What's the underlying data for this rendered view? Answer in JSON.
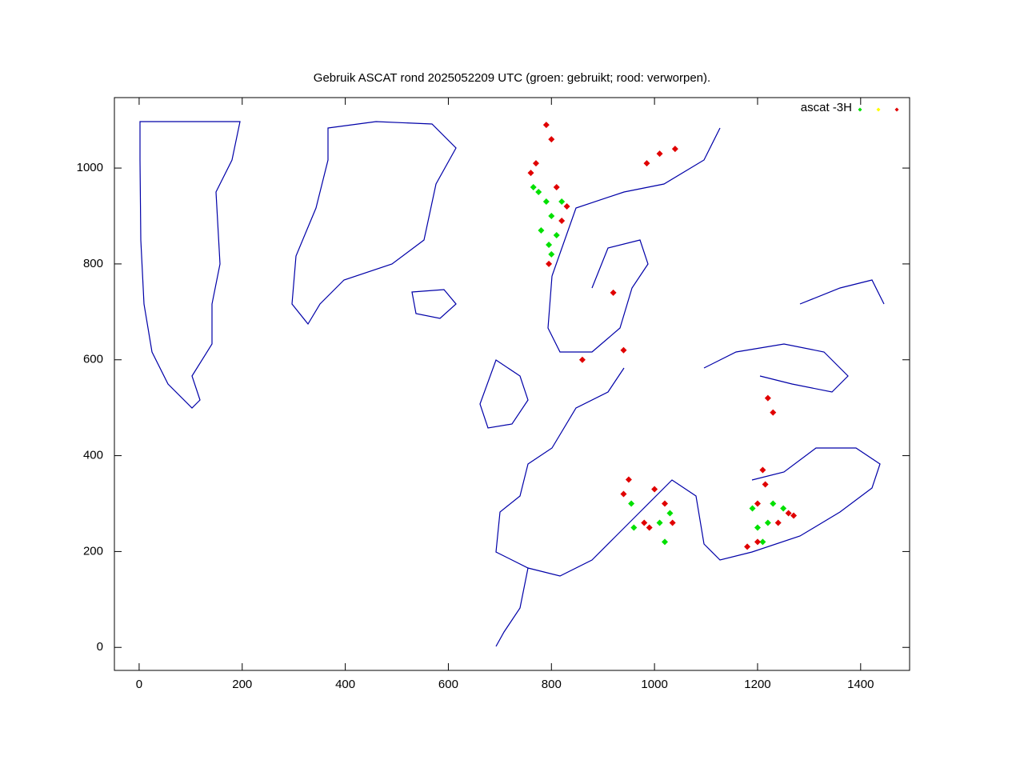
{
  "chart_data": {
    "type": "scatter",
    "title": "Gebruik ASCAT rond 2025052209 UTC (groen: gebruikt; rood: verworpen).",
    "legend_label": "ascat -3H",
    "legend": "top-right",
    "series": [
      {
        "color": "#00e000",
        "x": [
          790,
          800,
          780,
          810,
          800,
          775,
          820,
          1220,
          1190,
          1210,
          1250,
          955,
          960,
          1010,
          1020,
          1030,
          765,
          795,
          1200,
          1230
        ],
        "y": [
          930,
          900,
          870,
          860,
          820,
          950,
          930,
          260,
          290,
          220,
          290,
          300,
          250,
          260,
          220,
          280,
          960,
          840,
          250,
          300
        ]
      },
      {
        "color": "#ffff00",
        "x": [],
        "y": []
      },
      {
        "color": "#e00000",
        "x": [
          790,
          800,
          760,
          810,
          820,
          830,
          795,
          1010,
          985,
          1040,
          920,
          940,
          860,
          1220,
          1230,
          1210,
          1200,
          1260,
          1240,
          1180,
          1200,
          950,
          940,
          980,
          1000,
          1020,
          1035,
          990,
          770,
          1215,
          1270
        ],
        "y": [
          1090,
          1060,
          990,
          960,
          890,
          920,
          800,
          1030,
          1010,
          1040,
          740,
          620,
          600,
          520,
          490,
          370,
          300,
          280,
          260,
          210,
          220,
          350,
          320,
          260,
          330,
          300,
          260,
          250,
          1010,
          340,
          275
        ]
      }
    ],
    "xlim": [
      -48,
      1495
    ],
    "ylim": [
      -48,
      1147
    ],
    "xticks": [
      0,
      200,
      400,
      600,
      800,
      1000,
      1200,
      1400
    ],
    "yticks": [
      0,
      200,
      400,
      600,
      800,
      1000
    ]
  }
}
